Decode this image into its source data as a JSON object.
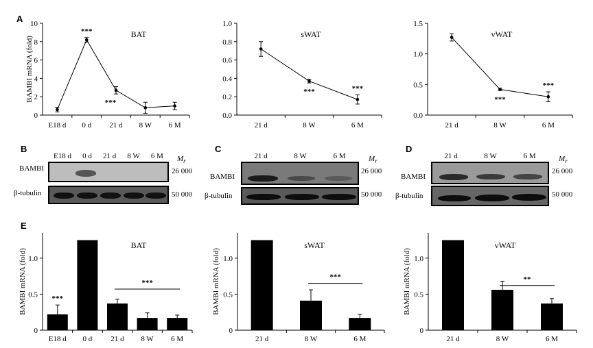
{
  "panels": {
    "A": "A",
    "B": "B",
    "C": "C",
    "D": "D",
    "E": "E"
  },
  "line_charts": [
    {
      "id": "bat",
      "title": "BAT",
      "ylabel": "BAMBI mRNA (fold)",
      "yticks": [
        "0",
        "2",
        "4",
        "6",
        "8",
        "10"
      ],
      "ymin": 0,
      "ymax": 10,
      "categories": [
        "E18 d",
        "0 d",
        "21 d",
        "8 W",
        "6 M"
      ],
      "values": [
        0.6,
        8.2,
        2.7,
        0.8,
        1.0
      ],
      "errors": [
        0.25,
        0.25,
        0.4,
        0.6,
        0.4
      ],
      "annotations": [
        {
          "index": 1,
          "text": "***",
          "pos": "above"
        },
        {
          "index": 2,
          "text": "***",
          "pos": "below-left"
        }
      ]
    },
    {
      "id": "swat",
      "title": "sWAT",
      "ylabel": "",
      "yticks": [
        "0.0",
        "0.2",
        "0.4",
        "0.6",
        "0.8",
        "1.0"
      ],
      "ymin": 0,
      "ymax": 1.0,
      "categories": [
        "21 d",
        "8 W",
        "6 M"
      ],
      "values": [
        0.72,
        0.37,
        0.17
      ],
      "errors": [
        0.08,
        0.02,
        0.05
      ],
      "annotations": [
        {
          "index": 1,
          "text": "***",
          "pos": "below"
        },
        {
          "index": 2,
          "text": "***",
          "pos": "above"
        }
      ]
    },
    {
      "id": "vwat",
      "title": "vWAT",
      "ylabel": "",
      "yticks": [
        "0.0",
        "0.5",
        "1.0",
        "1.5"
      ],
      "ymin": 0,
      "ymax": 1.5,
      "categories": [
        "21 d",
        "8 W",
        "6 M"
      ],
      "values": [
        1.27,
        0.42,
        0.3
      ],
      "errors": [
        0.06,
        0.02,
        0.08
      ],
      "annotations": [
        {
          "index": 1,
          "text": "***",
          "pos": "below"
        },
        {
          "index": 2,
          "text": "***",
          "pos": "above"
        }
      ]
    }
  ],
  "bar_charts": [
    {
      "id": "bat",
      "title": "BAT",
      "ylabel": "BAMBI mRNA (fold)",
      "yticks": [
        "0",
        "0.5",
        "1.0"
      ],
      "ymax": 1.35,
      "categories": [
        "E18 d",
        "0 d",
        "21 d",
        "8 W",
        "6 M"
      ],
      "values": [
        0.22,
        1.25,
        0.37,
        0.17,
        0.17
      ],
      "errors": [
        0.13,
        0,
        0.06,
        0.07,
        0.04
      ],
      "star_above": {
        "index": 0,
        "text": "***"
      },
      "bracket": {
        "from": 2,
        "to": 4,
        "text": "***",
        "y": 0.57
      }
    },
    {
      "id": "swat",
      "title": "sWAT",
      "ylabel": "BAMBI mRNA (fold)",
      "yticks": [
        "0",
        "0.5",
        "1.0"
      ],
      "ymax": 1.35,
      "categories": [
        "21 d",
        "8 W",
        "6 M"
      ],
      "values": [
        1.25,
        0.41,
        0.17
      ],
      "errors": [
        0,
        0.15,
        0.05
      ],
      "star_above": null,
      "bracket": {
        "from": 1,
        "to": 2,
        "text": "***",
        "y": 0.65
      }
    },
    {
      "id": "vwat",
      "title": "vWAT",
      "ylabel": "BAMBI mRNA (fold)",
      "yticks": [
        "0",
        "0.5",
        "1.0"
      ],
      "ymax": 1.35,
      "categories": [
        "21 d",
        "8 W",
        "6 M"
      ],
      "values": [
        1.25,
        0.56,
        0.37
      ],
      "errors": [
        0,
        0.12,
        0.07
      ],
      "star_above": null,
      "bracket": {
        "from": 1,
        "to": 2,
        "text": "**",
        "y": 0.62
      }
    }
  ],
  "blots": {
    "B": {
      "lanes": [
        "E18 d",
        "0 d",
        "21 d",
        "8 W",
        "6 M"
      ],
      "row1": "BAMBI",
      "row2": "β-tubulin",
      "mr_label": "M",
      "mr_sub": "r",
      "mw1": "26 000",
      "mw2": "50 000"
    },
    "C": {
      "lanes": [
        "21 d",
        "8 W",
        "6 M"
      ],
      "row1": "BAMBI",
      "row2": "β-tubulin",
      "mr_label": "M",
      "mr_sub": "r",
      "mw1": "26 000",
      "mw2": "50 000"
    },
    "D": {
      "lanes": [
        "21 d",
        "8 W",
        "6 M"
      ],
      "row1": "BAMBI",
      "row2": "β-tubulin",
      "mr_label": "M",
      "mr_sub": "r",
      "mw1": "26 000",
      "mw2": "50 000"
    }
  }
}
